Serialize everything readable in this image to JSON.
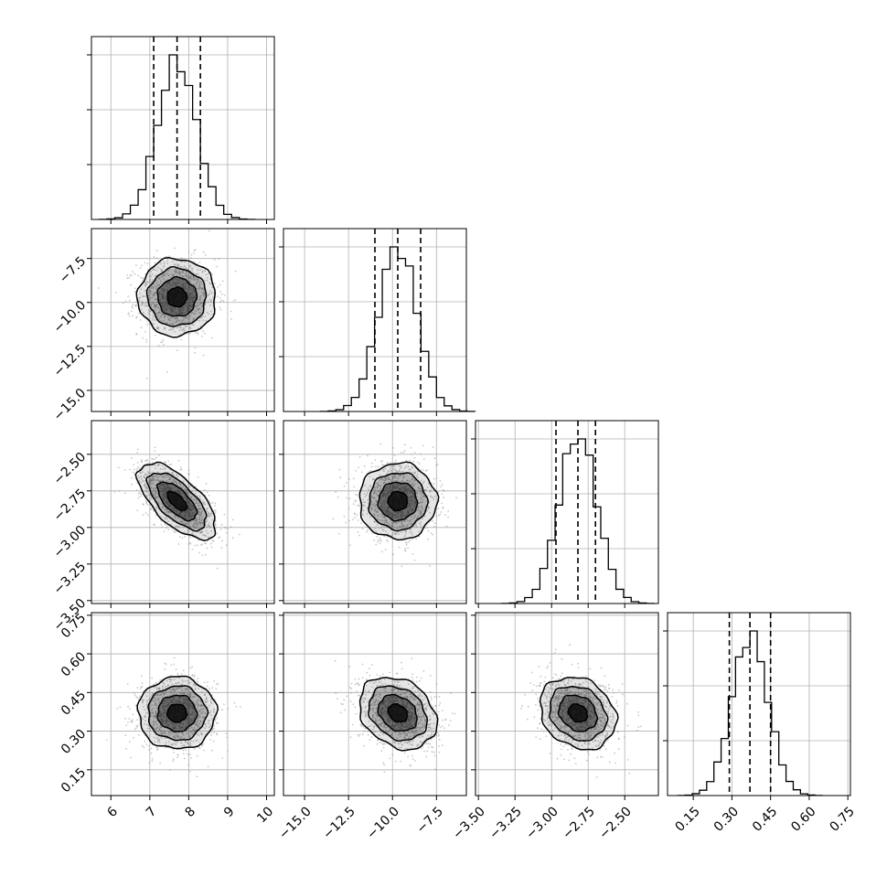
{
  "chart_data": {
    "type": "corner",
    "parameters": [
      {
        "index": 0,
        "range": [
          5.5,
          10.2
        ],
        "tick_values": [
          6,
          7,
          8,
          9,
          10
        ],
        "tick_labels": [
          "6",
          "7",
          "8",
          "9",
          "10"
        ],
        "mean": 7.7,
        "sd": 0.5,
        "quantiles": [
          7.1,
          7.7,
          8.3
        ],
        "hist_peak": 0.3
      },
      {
        "index": 1,
        "range": [
          -16.2,
          -5.8
        ],
        "tick_values": [
          -15.0,
          -12.5,
          -10.0,
          -7.5
        ],
        "tick_labels": [
          "−15.0",
          "−12.5",
          "−10.0",
          "−7.5"
        ],
        "mean": -9.7,
        "sd": 1.1,
        "quantiles": [
          -11.0,
          -9.7,
          -8.4
        ],
        "hist_peak": 0.0
      },
      {
        "index": 2,
        "range": [
          -3.52,
          -2.27
        ],
        "tick_values": [
          -3.5,
          -3.25,
          -3.0,
          -2.75,
          -2.5
        ],
        "tick_labels": [
          "−3.50",
          "−3.25",
          "−3.00",
          "−2.75",
          "−2.50"
        ],
        "mean": -2.82,
        "sd": 0.13,
        "quantiles": [
          -2.97,
          -2.82,
          -2.7
        ],
        "hist_peak": 0.0
      },
      {
        "index": 3,
        "range": [
          0.05,
          0.76
        ],
        "tick_values": [
          0.15,
          0.3,
          0.45,
          0.6,
          0.75
        ],
        "tick_labels": [
          "0.15",
          "0.30",
          "0.45",
          "0.60",
          "0.75"
        ],
        "mean": 0.37,
        "sd": 0.07,
        "quantiles": [
          0.29,
          0.37,
          0.45
        ],
        "hist_peak": 0.0
      }
    ],
    "correlations": [
      [
        1.0,
        0.0,
        -0.65,
        0.0
      ],
      [
        0.0,
        1.0,
        0.0,
        -0.25
      ],
      [
        -0.65,
        0.0,
        1.0,
        -0.2
      ],
      [
        0.0,
        -0.25,
        -0.2,
        1.0
      ]
    ],
    "contour_levels_sigma": [
      0.5,
      1.0,
      1.5,
      2.0
    ],
    "histogram_bins": 20,
    "grid": true,
    "colors": {
      "hist": "#000000",
      "contour": "#000000",
      "density": "#000000",
      "points": "#9a9a9a",
      "grid": "#b0b0b0"
    }
  }
}
